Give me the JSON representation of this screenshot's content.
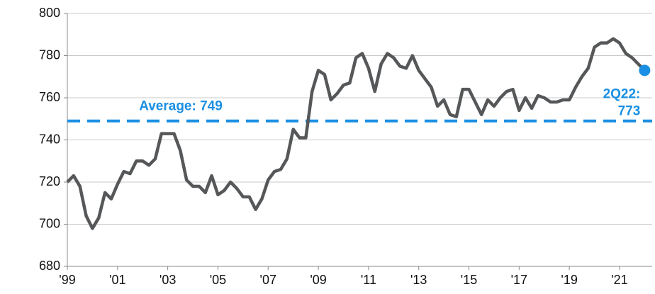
{
  "chart_data": {
    "type": "line",
    "x": [
      1999,
      1999.25,
      1999.5,
      1999.75,
      2000,
      2000.25,
      2000.5,
      2000.75,
      2001,
      2001.25,
      2001.5,
      2001.75,
      2002,
      2002.25,
      2002.5,
      2002.75,
      2003,
      2003.25,
      2003.5,
      2003.75,
      2004,
      2004.25,
      2004.5,
      2004.75,
      2005,
      2005.25,
      2005.5,
      2005.75,
      2006,
      2006.25,
      2006.5,
      2006.75,
      2007,
      2007.25,
      2007.5,
      2007.75,
      2008,
      2008.25,
      2008.5,
      2008.75,
      2009,
      2009.25,
      2009.5,
      2009.75,
      2010,
      2010.25,
      2010.5,
      2010.75,
      2011,
      2011.25,
      2011.5,
      2011.75,
      2012,
      2012.25,
      2012.5,
      2012.75,
      2013,
      2013.25,
      2013.5,
      2013.75,
      2014,
      2014.25,
      2014.5,
      2014.75,
      2015,
      2015.25,
      2015.5,
      2015.75,
      2016,
      2016.25,
      2016.5,
      2016.75,
      2017,
      2017.25,
      2017.5,
      2017.75,
      2018,
      2018.25,
      2018.5,
      2018.75,
      2019,
      2019.25,
      2019.5,
      2019.75,
      2020,
      2020.25,
      2020.5,
      2020.75,
      2021,
      2021.25,
      2021.5,
      2021.75,
      2022
    ],
    "series": [
      {
        "color": "#555759",
        "values": [
          720,
          723,
          718,
          704,
          698,
          703,
          715,
          712,
          719,
          725,
          724,
          730,
          730,
          728,
          731,
          743,
          743,
          743,
          735,
          721,
          718,
          718,
          715,
          723,
          714,
          716,
          720,
          717,
          713,
          713,
          707,
          712,
          721,
          725,
          726,
          731,
          745,
          741,
          741,
          763,
          773,
          771,
          759,
          762,
          766,
          767,
          779,
          781,
          774,
          763,
          776,
          781,
          779,
          775,
          774,
          780,
          773,
          769,
          765,
          756,
          759,
          752,
          751,
          764,
          764,
          758,
          752,
          759,
          756,
          760,
          763,
          764,
          754,
          760,
          755,
          761,
          760,
          758,
          758,
          759,
          759,
          765,
          770,
          774,
          784,
          786,
          786,
          788,
          786,
          781,
          779,
          776,
          773
        ]
      }
    ],
    "average": {
      "value": 749,
      "label": "Average: 749",
      "color": "#1a8fe3"
    },
    "last_point_label": [
      "2Q22:",
      "773"
    ],
    "xlim": [
      1999,
      2022.3
    ],
    "xticks": [
      {
        "value": 1999,
        "label": "'99"
      },
      {
        "value": 2001,
        "label": "'01"
      },
      {
        "value": 2003,
        "label": "'03"
      },
      {
        "value": 2005,
        "label": "'05"
      },
      {
        "value": 2007,
        "label": "'07"
      },
      {
        "value": 2009,
        "label": "'09"
      },
      {
        "value": 2011,
        "label": "'11"
      },
      {
        "value": 2013,
        "label": "'13"
      },
      {
        "value": 2015,
        "label": "'15"
      },
      {
        "value": 2017,
        "label": "'17"
      },
      {
        "value": 2019,
        "label": "'19"
      },
      {
        "value": 2021,
        "label": "'21"
      }
    ],
    "ylim": [
      680,
      800
    ],
    "yticks": [
      680,
      700,
      720,
      740,
      760,
      780,
      800
    ],
    "grid": true
  }
}
